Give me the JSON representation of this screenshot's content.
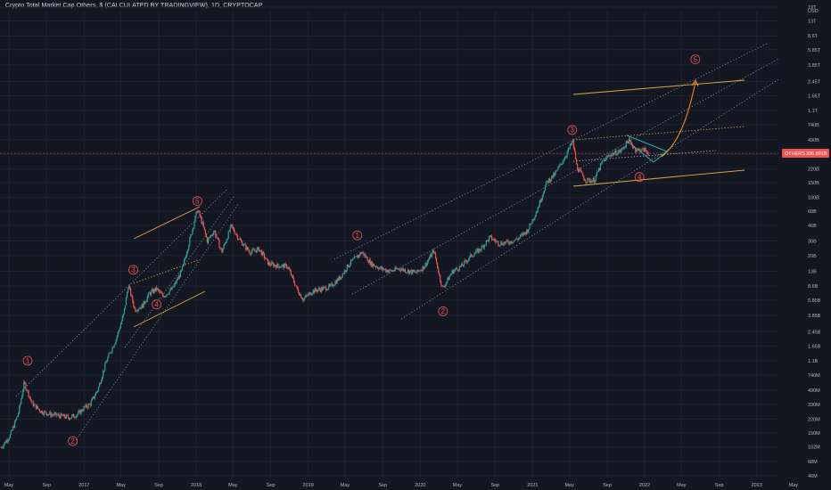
{
  "header": {
    "title": "Crypto Total Market Cap Others, $ (CALCULATED BY TRADINGVIEW), 1D, CRYPTOCAP"
  },
  "price_tag": {
    "symbol": "OTHERS",
    "value": "336.891B"
  },
  "colors": {
    "background": "#131722",
    "up_candle": "#26a69a",
    "down_candle": "#ef5350",
    "channel_dotted": "#9fb4d0",
    "channel_orange": "#f5b74a",
    "wave_label": "#ef5350",
    "projection": "#f7931a",
    "cyan_pattern": "#2ec4c4",
    "price_line": "#ef5350"
  },
  "chart_data": {
    "type": "line",
    "title": "Crypto Total Market Cap Others, $ (CALCULATED BY TRADINGVIEW), 1D, CRYPTOCAP",
    "xlabel": "",
    "ylabel": "",
    "y_scale": "log",
    "y_unit": "USD",
    "ylim": [
      46000000.0,
      19000000000000.0
    ],
    "x_ticks": [
      "May",
      "Sep",
      "2017",
      "May",
      "Sep",
      "2018",
      "May",
      "Sep",
      "2019",
      "May",
      "Sep",
      "2020",
      "May",
      "Sep",
      "2021",
      "May",
      "Sep",
      "2022",
      "May",
      "Sep",
      "2023",
      "May"
    ],
    "x_tick_dates": [
      "2016-05-01",
      "2016-09-01",
      "2017-01-01",
      "2017-05-01",
      "2017-09-01",
      "2018-01-01",
      "2018-05-01",
      "2018-09-01",
      "2019-01-01",
      "2019-05-01",
      "2019-09-01",
      "2020-01-01",
      "2020-05-01",
      "2020-09-01",
      "2021-01-01",
      "2021-05-01",
      "2021-09-01",
      "2022-01-01",
      "2022-05-01",
      "2022-09-01",
      "2023-01-01",
      "2023-05-01"
    ],
    "y_ticks": [
      {
        "label": "19T",
        "value": 19000000000000.0
      },
      {
        "label": "13T",
        "value": 13000000000000.0
      },
      {
        "label": "8.6T",
        "value": 8600000000000.0
      },
      {
        "label": "5.85T",
        "value": 5850000000000.0
      },
      {
        "label": "3.85T",
        "value": 3850000000000.0
      },
      {
        "label": "2.45T",
        "value": 2450000000000.0
      },
      {
        "label": "1.65T",
        "value": 1650000000000.0
      },
      {
        "label": "1.1T",
        "value": 1100000000000.0
      },
      {
        "label": "740B",
        "value": 740000000000.0
      },
      {
        "label": "490B",
        "value": 490000000000.0
      },
      {
        "label": "330B",
        "value": 330000000000.0
      },
      {
        "label": "220B",
        "value": 220000000000.0
      },
      {
        "label": "150B",
        "value": 150000000000.0
      },
      {
        "label": "100B",
        "value": 100000000000.0
      },
      {
        "label": "68B",
        "value": 68000000000.0
      },
      {
        "label": "46B",
        "value": 46000000000.0
      },
      {
        "label": "30B",
        "value": 30000000000.0
      },
      {
        "label": "20B",
        "value": 20000000000.0
      },
      {
        "label": "13B",
        "value": 13000000000.0
      },
      {
        "label": "8.6B",
        "value": 8600000000.0
      },
      {
        "label": "5.85B",
        "value": 5850000000.0
      },
      {
        "label": "3.85B",
        "value": 3850000000.0
      },
      {
        "label": "2.45B",
        "value": 2450000000.0
      },
      {
        "label": "1.65B",
        "value": 1650000000.0
      },
      {
        "label": "1.1B",
        "value": 1100000000.0
      },
      {
        "label": "740M",
        "value": 740000000.0
      },
      {
        "label": "490M",
        "value": 490000000.0
      },
      {
        "label": "330M",
        "value": 330000000.0
      },
      {
        "label": "220M",
        "value": 220000000.0
      },
      {
        "label": "150M",
        "value": 150000000.0
      },
      {
        "label": "102M",
        "value": 102000000.0
      },
      {
        "label": "68M",
        "value": 68000000.0
      },
      {
        "label": "46M",
        "value": 46000000.0
      }
    ],
    "y_axis_unit_label": "USD",
    "current_value": 336891000000.0,
    "series": [
      {
        "values": [
          {
            "x": "2016-04-05",
            "y": 100000000.0
          },
          {
            "x": "2016-05-05",
            "y": 140000000.0
          },
          {
            "x": "2016-06-01",
            "y": 260000000.0
          },
          {
            "x": "2016-06-20",
            "y": 600000000.0
          },
          {
            "x": "2016-07-15",
            "y": 340000000.0
          },
          {
            "x": "2016-08-15",
            "y": 270000000.0
          },
          {
            "x": "2016-09-15",
            "y": 250000000.0
          },
          {
            "x": "2016-10-15",
            "y": 240000000.0
          },
          {
            "x": "2016-11-15",
            "y": 230000000.0
          },
          {
            "x": "2016-12-10",
            "y": 250000000.0
          },
          {
            "x": "2017-01-01",
            "y": 300000000.0
          },
          {
            "x": "2017-01-20",
            "y": 330000000.0
          },
          {
            "x": "2017-02-15",
            "y": 500000000.0
          },
          {
            "x": "2017-03-15",
            "y": 1100000000.0
          },
          {
            "x": "2017-04-15",
            "y": 2000000000.0
          },
          {
            "x": "2017-05-10",
            "y": 4000000000.0
          },
          {
            "x": "2017-05-25",
            "y": 9000000000.0
          },
          {
            "x": "2017-06-15",
            "y": 4500000000.0
          },
          {
            "x": "2017-07-10",
            "y": 5000000000.0
          },
          {
            "x": "2017-08-01",
            "y": 7000000000.0
          },
          {
            "x": "2017-08-25",
            "y": 8000000000.0
          },
          {
            "x": "2017-09-15",
            "y": 6500000000.0
          },
          {
            "x": "2017-10-15",
            "y": 8000000000.0
          },
          {
            "x": "2017-11-15",
            "y": 13000000000.0
          },
          {
            "x": "2017-12-10",
            "y": 30000000000.0
          },
          {
            "x": "2018-01-05",
            "y": 72000000000.0
          },
          {
            "x": "2018-01-20",
            "y": 50000000000.0
          },
          {
            "x": "2018-02-06",
            "y": 30000000000.0
          },
          {
            "x": "2018-03-01",
            "y": 40000000000.0
          },
          {
            "x": "2018-03-25",
            "y": 22000000000.0
          },
          {
            "x": "2018-04-25",
            "y": 45000000000.0
          },
          {
            "x": "2018-05-25",
            "y": 30000000000.0
          },
          {
            "x": "2018-06-25",
            "y": 22000000000.0
          },
          {
            "x": "2018-07-25",
            "y": 24000000000.0
          },
          {
            "x": "2018-08-25",
            "y": 16000000000.0
          },
          {
            "x": "2018-09-25",
            "y": 15000000000.0
          },
          {
            "x": "2018-10-25",
            "y": 15000000000.0
          },
          {
            "x": "2018-11-25",
            "y": 8000000000.0
          },
          {
            "x": "2018-12-15",
            "y": 6000000000.0
          },
          {
            "x": "2019-01-15",
            "y": 7500000000.0
          },
          {
            "x": "2019-02-15",
            "y": 8000000000.0
          },
          {
            "x": "2019-03-15",
            "y": 8500000000.0
          },
          {
            "x": "2019-04-15",
            "y": 11000000000.0
          },
          {
            "x": "2019-05-15",
            "y": 16000000000.0
          },
          {
            "x": "2019-06-25",
            "y": 22000000000.0
          },
          {
            "x": "2019-07-25",
            "y": 16000000000.0
          },
          {
            "x": "2019-08-25",
            "y": 14000000000.0
          },
          {
            "x": "2019-09-25",
            "y": 13000000000.0
          },
          {
            "x": "2019-10-25",
            "y": 14000000000.0
          },
          {
            "x": "2019-11-25",
            "y": 13000000000.0
          },
          {
            "x": "2019-12-20",
            "y": 12500000000.0
          },
          {
            "x": "2020-01-15",
            "y": 15000000000.0
          },
          {
            "x": "2020-02-14",
            "y": 23000000000.0
          },
          {
            "x": "2020-03-13",
            "y": 8000000000.0
          },
          {
            "x": "2020-04-15",
            "y": 13000000000.0
          },
          {
            "x": "2020-05-15",
            "y": 15000000000.0
          },
          {
            "x": "2020-06-15",
            "y": 20000000000.0
          },
          {
            "x": "2020-07-15",
            "y": 24000000000.0
          },
          {
            "x": "2020-08-15",
            "y": 33000000000.0
          },
          {
            "x": "2020-09-15",
            "y": 28000000000.0
          },
          {
            "x": "2020-10-15",
            "y": 29000000000.0
          },
          {
            "x": "2020-11-15",
            "y": 32000000000.0
          },
          {
            "x": "2020-12-15",
            "y": 40000000000.0
          },
          {
            "x": "2021-01-15",
            "y": 70000000000.0
          },
          {
            "x": "2021-02-15",
            "y": 150000000000.0
          },
          {
            "x": "2021-03-15",
            "y": 190000000000.0
          },
          {
            "x": "2021-04-15",
            "y": 300000000000.0
          },
          {
            "x": "2021-05-12",
            "y": 470000000000.0
          },
          {
            "x": "2021-05-25",
            "y": 230000000000.0
          },
          {
            "x": "2021-06-22",
            "y": 160000000000.0
          },
          {
            "x": "2021-07-20",
            "y": 160000000000.0
          },
          {
            "x": "2021-08-15",
            "y": 260000000000.0
          },
          {
            "x": "2021-09-07",
            "y": 320000000000.0
          },
          {
            "x": "2021-10-15",
            "y": 360000000000.0
          },
          {
            "x": "2021-11-09",
            "y": 480000000000.0
          },
          {
            "x": "2021-12-04",
            "y": 370000000000.0
          },
          {
            "x": "2022-01-01",
            "y": 370000000000.0
          },
          {
            "x": "2022-01-15",
            "y": 336891000000.0
          }
        ]
      }
    ],
    "annotations": [
      {
        "type": "wave-label",
        "text": "1",
        "x": "2016-07-01",
        "y": 1100000000.0
      },
      {
        "type": "wave-label",
        "text": "2",
        "x": "2016-11-25",
        "y": 120000000.0
      },
      {
        "type": "wave-label",
        "text": "3",
        "x": "2017-06-10",
        "y": 13500000000.0
      },
      {
        "type": "wave-label",
        "text": "4",
        "x": "2017-08-25",
        "y": 5200000000.0
      },
      {
        "type": "wave-label",
        "text": "5",
        "x": "2018-01-05",
        "y": 90000000000.0
      },
      {
        "type": "wave-label",
        "text": "1",
        "x": "2019-06-10",
        "y": 35000000000.0
      },
      {
        "type": "wave-label",
        "text": "2",
        "x": "2020-03-15",
        "y": 4300000000.0
      },
      {
        "type": "wave-label",
        "text": "3",
        "x": "2021-05-10",
        "y": 640000000000.0
      },
      {
        "type": "wave-label",
        "text": "4",
        "x": "2021-12-15",
        "y": 175000000000.0
      },
      {
        "type": "wave-label",
        "text": "5",
        "x": "2022-06-15",
        "y": 4500000000000.0
      }
    ]
  }
}
